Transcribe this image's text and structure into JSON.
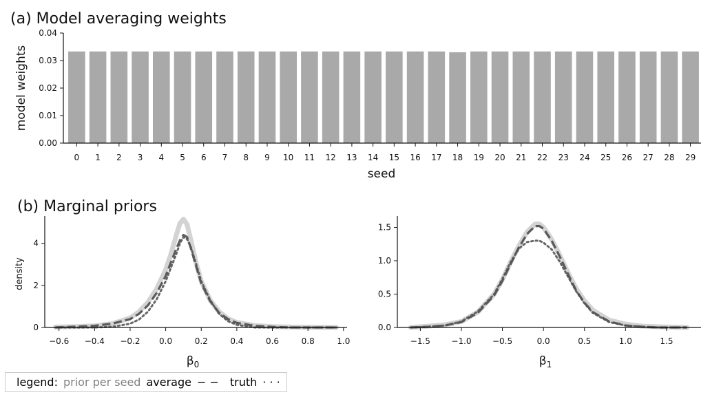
{
  "chart_data": [
    {
      "panel": "a",
      "type": "bar",
      "title": "(a) Model averaging weights",
      "xlabel": "seed",
      "ylabel": "model weights",
      "ylim": [
        0,
        0.04
      ],
      "yticks": [
        "0.00",
        "0.01",
        "0.02",
        "0.03",
        "0.04"
      ],
      "categories": [
        "0",
        "1",
        "2",
        "3",
        "4",
        "5",
        "6",
        "7",
        "8",
        "9",
        "10",
        "11",
        "12",
        "13",
        "14",
        "15",
        "16",
        "17",
        "18",
        "19",
        "20",
        "21",
        "22",
        "23",
        "24",
        "25",
        "26",
        "27",
        "28",
        "29"
      ],
      "values": [
        0.0333,
        0.0333,
        0.0333,
        0.0333,
        0.0333,
        0.0333,
        0.0333,
        0.0333,
        0.0333,
        0.0333,
        0.0333,
        0.0333,
        0.0333,
        0.0333,
        0.0333,
        0.0333,
        0.0333,
        0.0333,
        0.033,
        0.0333,
        0.0333,
        0.0333,
        0.0333,
        0.0333,
        0.0333,
        0.0333,
        0.0333,
        0.0333,
        0.0333,
        0.0333
      ],
      "bar_color": "#a9a9a9"
    },
    {
      "panel": "b",
      "type": "line",
      "title": "(b) Marginal priors",
      "subplots": [
        {
          "xlabel": "β",
          "xlabel_sub": "0",
          "ylabel": "density",
          "xlim": [
            -0.68,
            1.02
          ],
          "ylim": [
            0,
            5.3
          ],
          "xticks": [
            -0.6,
            -0.4,
            -0.2,
            0.0,
            0.2,
            0.4,
            0.6,
            0.8,
            1.0
          ],
          "xtick_labels": [
            "−0.6",
            "−0.4",
            "−0.2",
            "0.0",
            "0.2",
            "0.4",
            "0.6",
            "0.8",
            "1.0"
          ],
          "yticks": [
            0,
            2,
            4
          ],
          "ytick_labels": [
            "0",
            "2",
            "4"
          ],
          "x": [
            -0.62,
            -0.5,
            -0.4,
            -0.3,
            -0.2,
            -0.15,
            -0.1,
            -0.05,
            0.0,
            0.03,
            0.06,
            0.08,
            0.1,
            0.12,
            0.14,
            0.17,
            0.2,
            0.25,
            0.3,
            0.35,
            0.4,
            0.5,
            0.6,
            0.7,
            0.8,
            0.96
          ],
          "series": [
            {
              "name": "prior per seed",
              "style": "band",
              "color": "#d3d3d3",
              "values": [
                0.02,
                0.04,
                0.08,
                0.18,
                0.45,
                0.75,
                1.2,
                1.85,
                2.75,
                3.5,
                4.4,
                4.95,
                5.15,
                4.9,
                4.2,
                3.1,
                2.2,
                1.3,
                0.75,
                0.42,
                0.24,
                0.09,
                0.04,
                0.02,
                0.01,
                0.0
              ]
            },
            {
              "name": "average",
              "style": "dashed",
              "color": "#4d4d4d",
              "values": [
                0.0,
                0.04,
                0.08,
                0.18,
                0.4,
                0.65,
                1.05,
                1.65,
                2.45,
                3.1,
                3.75,
                4.15,
                4.4,
                4.3,
                3.8,
                2.95,
                2.1,
                1.25,
                0.7,
                0.4,
                0.22,
                0.08,
                0.03,
                0.0,
                0.0,
                0.0
              ]
            },
            {
              "name": "truth",
              "style": "dotted",
              "color": "#555555",
              "values": [
                0.0,
                0.0,
                0.0,
                0.03,
                0.18,
                0.38,
                0.75,
                1.35,
                2.2,
                2.85,
                3.5,
                4.0,
                4.3,
                4.2,
                3.85,
                3.05,
                2.2,
                1.3,
                0.65,
                0.3,
                0.12,
                0.0,
                0.0,
                0.0,
                0.0,
                0.0
              ]
            }
          ]
        },
        {
          "xlabel": "β",
          "xlabel_sub": "1",
          "ylabel": "",
          "xlim": [
            -1.78,
            1.92
          ],
          "ylim": [
            0,
            1.67
          ],
          "xticks": [
            -1.5,
            -1.0,
            -0.5,
            0.0,
            0.5,
            1.0,
            1.5
          ],
          "xtick_labels": [
            "−1.5",
            "−1.0",
            "−0.5",
            "0.0",
            "0.5",
            "1.0",
            "1.5"
          ],
          "yticks": [
            0.0,
            0.5,
            1.0,
            1.5
          ],
          "ytick_labels": [
            "0.0",
            "0.5",
            "1.0",
            "1.5"
          ],
          "x": [
            -1.62,
            -1.4,
            -1.2,
            -1.0,
            -0.8,
            -0.6,
            -0.5,
            -0.4,
            -0.3,
            -0.2,
            -0.1,
            -0.05,
            0.0,
            0.1,
            0.2,
            0.3,
            0.4,
            0.5,
            0.6,
            0.8,
            1.0,
            1.2,
            1.4,
            1.75
          ],
          "series": [
            {
              "name": "prior per seed",
              "style": "band",
              "color": "#d3d3d3",
              "values": [
                0.0,
                0.02,
                0.04,
                0.09,
                0.23,
                0.5,
                0.72,
                0.98,
                1.22,
                1.43,
                1.55,
                1.55,
                1.5,
                1.32,
                1.08,
                0.82,
                0.58,
                0.4,
                0.26,
                0.11,
                0.05,
                0.02,
                0.01,
                0.0
              ]
            },
            {
              "name": "average",
              "style": "dashed",
              "color": "#4d4d4d",
              "values": [
                0.0,
                0.01,
                0.03,
                0.08,
                0.22,
                0.48,
                0.7,
                0.95,
                1.2,
                1.4,
                1.52,
                1.52,
                1.48,
                1.3,
                1.06,
                0.8,
                0.55,
                0.37,
                0.23,
                0.09,
                0.03,
                0.01,
                0.0,
                0.0
              ]
            },
            {
              "name": "truth",
              "style": "dotted",
              "color": "#555555",
              "values": [
                0.0,
                0.01,
                0.03,
                0.09,
                0.24,
                0.5,
                0.73,
                0.98,
                1.18,
                1.28,
                1.3,
                1.3,
                1.27,
                1.17,
                0.98,
                0.76,
                0.54,
                0.36,
                0.22,
                0.08,
                0.03,
                0.01,
                0.0,
                0.0
              ]
            }
          ]
        }
      ]
    }
  ],
  "legend": {
    "title": "legend:",
    "items": [
      {
        "label": "prior per seed",
        "glyph": ""
      },
      {
        "label": "average",
        "glyph": "− −"
      },
      {
        "label": "truth",
        "glyph": "· · ·"
      }
    ]
  }
}
